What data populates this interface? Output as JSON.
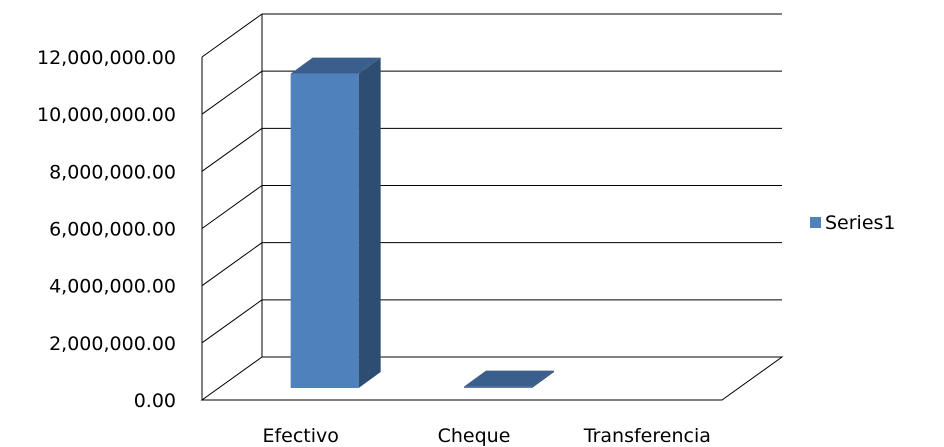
{
  "chart_data": {
    "type": "bar",
    "style": "3d-column",
    "categories": [
      "Efectivo",
      "Cheque",
      "Transferencia"
    ],
    "series": [
      {
        "name": "Series1",
        "values": [
          11000000,
          50000,
          0
        ]
      }
    ],
    "ylim": [
      0,
      12000000
    ],
    "yticks": [
      0,
      2000000,
      4000000,
      6000000,
      8000000,
      10000000,
      12000000
    ],
    "ytick_labels": [
      "0.00",
      "2,000,000.00",
      "4,000,000.00",
      "6,000,000.00",
      "8,000,000.00",
      "10,000,000.00",
      "12,000,000.00"
    ],
    "grid": true,
    "legend": "right",
    "colors": {
      "bar_front": "#4f81bd",
      "bar_side": "#2e4d73",
      "bar_top": "#3b5f8c",
      "grid": "#000000"
    }
  }
}
